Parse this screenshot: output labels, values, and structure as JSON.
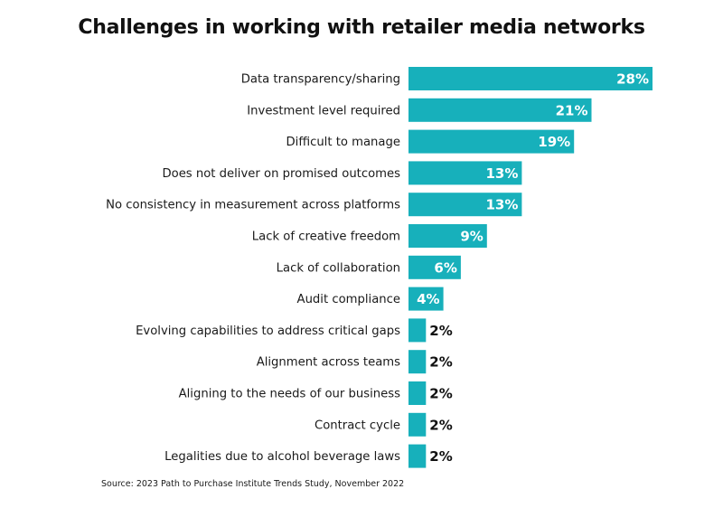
{
  "chart_data": {
    "type": "bar",
    "orientation": "horizontal",
    "title": "Challenges in working with retailer media networks",
    "categories": [
      "Data transparency/sharing",
      "Investment level required",
      "Difficult to manage",
      "Does not deliver on promised outcomes",
      "No consistency in measurement across platforms",
      "Lack of creative freedom",
      "Lack of collaboration",
      "Audit compliance",
      "Evolving capabilities to address critical gaps",
      "Alignment across teams",
      "Aligning to the needs of our business",
      "Contract cycle",
      "Legalities due to alcohol beverage laws"
    ],
    "values": [
      28,
      21,
      19,
      13,
      13,
      9,
      6,
      4,
      2,
      2,
      2,
      2,
      2
    ],
    "value_labels": [
      "28%",
      "21%",
      "19%",
      "13%",
      "13%",
      "9%",
      "6%",
      "4%",
      "2%",
      "2%",
      "2%",
      "2%",
      "2%"
    ],
    "bar_color": "#17b0bb",
    "inside_label_color": "#ffffff",
    "outside_label_color": "#111111",
    "grid": false,
    "legend": "none",
    "source": "Source: 2023 Path to Purchase Institute Trends Study, November 2022"
  }
}
